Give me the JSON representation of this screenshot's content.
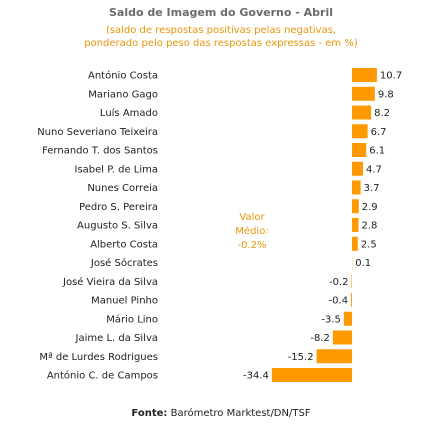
{
  "title": "Saldo de Imagem do Governo - Abril",
  "subtitle_line1": "(saldo de respostas positivas pelas negativas,",
  "subtitle_line2": "ponderado pelo peso das respostas expressas - em %)",
  "average": {
    "line1": "Valor",
    "line2": "Médio:",
    "line3": "-0.2%"
  },
  "source": {
    "label": "Fonte:",
    "text": "Barómetro Marktest/DN/TSF"
  },
  "colors": {
    "bar": "#ff9900",
    "title": "#6b6b6b",
    "accent": "#e8960a",
    "text": "#222222"
  },
  "chart_data": {
    "type": "bar",
    "orientation": "horizontal",
    "categories": [
      "António Costa",
      "Mariano Gago",
      "Luís Amado",
      "Nuno Severiano Teixeira",
      "Fernando T. dos Santos",
      "Isabel P. de Lima",
      "Nunes Correia",
      "Pedro S. Pereira",
      "Augusto S. Silva",
      "Alberto Costa",
      "José Sócrates",
      "José Vieira da Silva",
      "Manuel Pinho",
      "Mário Lino",
      "Jaime L. da Silva",
      "Mª de Lurdes Rodrigues",
      "António C. de Campos"
    ],
    "values": [
      10.7,
      9.8,
      8.2,
      6.7,
      6.1,
      4.7,
      3.7,
      2.9,
      2.8,
      2.5,
      0.1,
      -0.2,
      -0.4,
      -3.5,
      -8.2,
      -15.2,
      -34.4
    ],
    "value_labels": [
      "10.7",
      "9.8",
      "8.2",
      "6.7",
      "6.1",
      "4.7",
      "3.7",
      "2.9",
      "2.8",
      "2.5",
      "0.1",
      "-0.2",
      "-0.4",
      "-3.5",
      "-8.2",
      "-15.2",
      "-34.4"
    ]
  }
}
